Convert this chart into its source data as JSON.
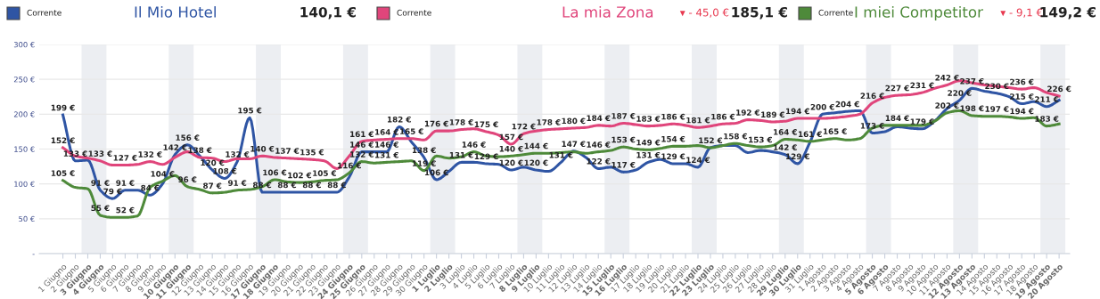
{
  "chart_data": {
    "type": "line",
    "categories": [
      "1 Giugno",
      "2 Giugno",
      "3 Giugno",
      "4 Giugno",
      "5 Giugno",
      "6 Giugno",
      "7 Giugno",
      "8 Giugno",
      "9 Giugno",
      "10 Giugno",
      "11 Giugno",
      "12 Giugno",
      "13 Giugno",
      "14 Giugno",
      "15 Giugno",
      "16 Giugno",
      "17 Giugno",
      "18 Giugno",
      "19 Giugno",
      "20 Giugno",
      "21 Giugno",
      "22 Giugno",
      "23 Giugno",
      "24 Giugno",
      "25 Giugno",
      "26 Giugno",
      "27 Giugno",
      "28 Giugno",
      "29 Giugno",
      "30 Giugno",
      "1 Luglio",
      "2 Luglio",
      "3 Luglio",
      "4 Luglio",
      "5 Luglio",
      "6 Luglio",
      "7 Luglio",
      "8 Luglio",
      "9 Luglio",
      "10 Luglio",
      "11 Luglio",
      "12 Luglio",
      "13 Luglio",
      "14 Luglio",
      "15 Luglio",
      "16 Luglio",
      "17 Luglio",
      "18 Luglio",
      "19 Luglio",
      "20 Luglio",
      "21 Luglio",
      "22 Luglio",
      "23 Luglio",
      "24 Luglio",
      "25 Luglio",
      "26 Luglio",
      "27 Luglio",
      "28 Luglio",
      "29 Luglio",
      "30 Luglio",
      "31 Luglio",
      "1 Agosto",
      "2 Agosto",
      "3 Agosto",
      "4 Agosto",
      "5 Agosto",
      "6 Agosto",
      "7 Agosto",
      "8 Agosto",
      "9 Agosto",
      "10 Agosto",
      "11 Agosto",
      "12 Agosto",
      "13 Agosto",
      "14 Agosto",
      "15 Agosto",
      "16 Agosto",
      "17 Agosto",
      "18 Agosto",
      "19 Agosto",
      "20 Agosto"
    ],
    "series": [
      {
        "name": "Il Mio Hotel",
        "color": "#2f55a4",
        "values": [
          199,
          133,
          134,
          91,
          79,
          91,
          91,
          84,
          100,
          142,
          156,
          140,
          120,
          108,
          132,
          195,
          88,
          88,
          88,
          88,
          88,
          88,
          88,
          110,
          146,
          146,
          146,
          182,
          160,
          138,
          106,
          118,
          131,
          131,
          129,
          128,
          120,
          124,
          120,
          118,
          131,
          147,
          138,
          122,
          124,
          117,
          120,
          131,
          135,
          129,
          129,
          124,
          152,
          155,
          155,
          145,
          148,
          146,
          142,
          129,
          160,
          200,
          202,
          204,
          205,
          173,
          175,
          182,
          180,
          179,
          190,
          208,
          220,
          237,
          233,
          230,
          225,
          215,
          218,
          211,
          220
        ],
        "value_labels": [
          "199 €",
          "133 €",
          null,
          "91 €",
          "79 €",
          "91 €",
          null,
          "84 €",
          null,
          "142 €",
          "156 €",
          null,
          "120 €",
          "108 €",
          "132 €",
          "195 €",
          "88 €",
          null,
          "88 €",
          null,
          "88 €",
          null,
          "88 €",
          null,
          "146 €",
          null,
          "146 €",
          "182 €",
          null,
          "138 €",
          "106 €",
          null,
          "131 €",
          null,
          "129 €",
          null,
          "120 €",
          null,
          "120 €",
          null,
          "131 €",
          "147 €",
          null,
          "122 €",
          null,
          "117 €",
          null,
          "131 €",
          null,
          "129 €",
          null,
          "124 €",
          null,
          null,
          null,
          null,
          null,
          null,
          "142 €",
          "129 €",
          null,
          "200 €",
          null,
          "204 €",
          null,
          "173 €",
          null,
          null,
          null,
          "179 €",
          null,
          null,
          "220 €",
          "237 €",
          null,
          "230 €",
          null,
          "215 €",
          null,
          "211 €",
          null
        ]
      },
      {
        "name": "La mia Zona",
        "color": "#e0457b",
        "values": [
          152,
          140,
          137,
          133,
          127,
          127,
          128,
          132,
          128,
          138,
          146,
          138,
          137,
          132,
          136,
          136,
          140,
          138,
          137,
          136,
          135,
          133,
          122,
          140,
          161,
          163,
          164,
          165,
          165,
          163,
          176,
          176,
          178,
          179,
          175,
          170,
          157,
          172,
          176,
          178,
          179,
          180,
          181,
          184,
          183,
          187,
          185,
          183,
          184,
          186,
          184,
          181,
          183,
          186,
          187,
          192,
          191,
          189,
          190,
          194,
          194,
          194,
          195,
          197,
          200,
          216,
          224,
          227,
          228,
          231,
          237,
          242,
          248,
          245,
          242,
          240,
          238,
          236,
          238,
          231,
          226
        ],
        "value_labels": [
          "152 €",
          null,
          null,
          "133 €",
          null,
          "127 €",
          null,
          "132 €",
          null,
          null,
          null,
          "138 €",
          null,
          null,
          null,
          null,
          "140 €",
          null,
          "137 €",
          null,
          "135 €",
          null,
          null,
          null,
          "161 €",
          null,
          "164 €",
          null,
          "165 €",
          null,
          "176 €",
          null,
          "178 €",
          null,
          "175 €",
          null,
          "157 €",
          "172 €",
          null,
          "178 €",
          null,
          "180 €",
          null,
          "184 €",
          null,
          "187 €",
          null,
          "183 €",
          null,
          "186 €",
          null,
          "181 €",
          null,
          "186 €",
          null,
          "192 €",
          null,
          "189 €",
          null,
          "194 €",
          null,
          null,
          null,
          null,
          null,
          "216 €",
          null,
          "227 €",
          null,
          "231 €",
          null,
          "242 €",
          null,
          null,
          null,
          null,
          null,
          "236 €",
          null,
          null,
          "226 €"
        ]
      },
      {
        "name": "I miei Competitor",
        "color": "#4e8a3a",
        "values": [
          105,
          95,
          93,
          55,
          52,
          52,
          54,
          95,
          104,
          112,
          96,
          92,
          87,
          88,
          91,
          92,
          96,
          106,
          103,
          102,
          103,
          105,
          106,
          116,
          132,
          130,
          131,
          132,
          133,
          119,
          140,
          137,
          139,
          146,
          140,
          139,
          140,
          142,
          144,
          144,
          145,
          146,
          144,
          146,
          148,
          153,
          150,
          149,
          151,
          154,
          154,
          155,
          152,
          155,
          158,
          155,
          153,
          155,
          164,
          163,
          161,
          163,
          165,
          163,
          165,
          180,
          184,
          184,
          184,
          184,
          190,
          202,
          205,
          198,
          197,
          197,
          196,
          194,
          195,
          183,
          186
        ],
        "value_labels": [
          "105 €",
          null,
          null,
          "55 €",
          null,
          "52 €",
          null,
          null,
          "104 €",
          null,
          "96 €",
          null,
          "87 €",
          null,
          "91 €",
          null,
          null,
          "106 €",
          null,
          "102 €",
          null,
          "105 €",
          null,
          "116 €",
          "132 €",
          null,
          "131 €",
          null,
          null,
          "119 €",
          null,
          null,
          null,
          "146 €",
          null,
          null,
          "140 €",
          null,
          "144 €",
          null,
          null,
          null,
          null,
          "146 €",
          null,
          "153 €",
          null,
          "149 €",
          null,
          "154 €",
          null,
          null,
          "152 €",
          null,
          "158 €",
          null,
          "153 €",
          null,
          "164 €",
          null,
          "161 €",
          null,
          "165 €",
          null,
          null,
          null,
          null,
          "184 €",
          null,
          null,
          null,
          "202 €",
          null,
          "198 €",
          null,
          "197 €",
          null,
          "194 €",
          null,
          "183 €",
          null
        ]
      }
    ],
    "annotations": [
      "Corrente",
      "140,1 €",
      "Corrente",
      "▾ - 45,0 €",
      "185,1 €",
      "Corrente",
      "▾ - 9,1 €",
      "149,2 €"
    ],
    "bands": [
      {
        "axis": "x",
        "from": "3 Giugno",
        "to": "4 Giugno",
        "color": "#eceef2"
      },
      {
        "axis": "x",
        "from": "10 Giugno",
        "to": "11 Giugno",
        "color": "#eceef2"
      },
      {
        "axis": "x",
        "from": "17 Giugno",
        "to": "18 Giugno",
        "color": "#eceef2"
      },
      {
        "axis": "x",
        "from": "24 Giugno",
        "to": "25 Giugno",
        "color": "#eceef2"
      },
      {
        "axis": "x",
        "from": "1 Luglio",
        "to": "2 Luglio",
        "color": "#eceef2"
      },
      {
        "axis": "x",
        "from": "8 Luglio",
        "to": "9 Luglio",
        "color": "#eceef2"
      },
      {
        "axis": "x",
        "from": "15 Luglio",
        "to": "16 Luglio",
        "color": "#eceef2"
      },
      {
        "axis": "x",
        "from": "22 Luglio",
        "to": "23 Luglio",
        "color": "#eceef2"
      },
      {
        "axis": "x",
        "from": "29 Luglio",
        "to": "30 Luglio",
        "color": "#eceef2"
      },
      {
        "axis": "x",
        "from": "5 Agosto",
        "to": "6 Agosto",
        "color": "#eceef2"
      },
      {
        "axis": "x",
        "from": "12 Agosto",
        "to": "13 Agosto",
        "color": "#eceef2"
      },
      {
        "axis": "x",
        "from": "19 Agosto",
        "to": "20 Agosto",
        "color": "#eceef2"
      }
    ],
    "ylim": [
      0,
      300
    ],
    "yticks": [
      {
        "value": 0,
        "label": "-"
      },
      {
        "value": 50,
        "label": "50 €"
      },
      {
        "value": 100,
        "label": "100 €"
      },
      {
        "value": 150,
        "label": "150 €"
      },
      {
        "value": 200,
        "label": "200 €"
      },
      {
        "value": 250,
        "label": "250 €"
      },
      {
        "value": 300,
        "label": "300 €"
      }
    ],
    "grid": "y",
    "legend": "top",
    "marker": "none",
    "line_style": "solid"
  }
}
